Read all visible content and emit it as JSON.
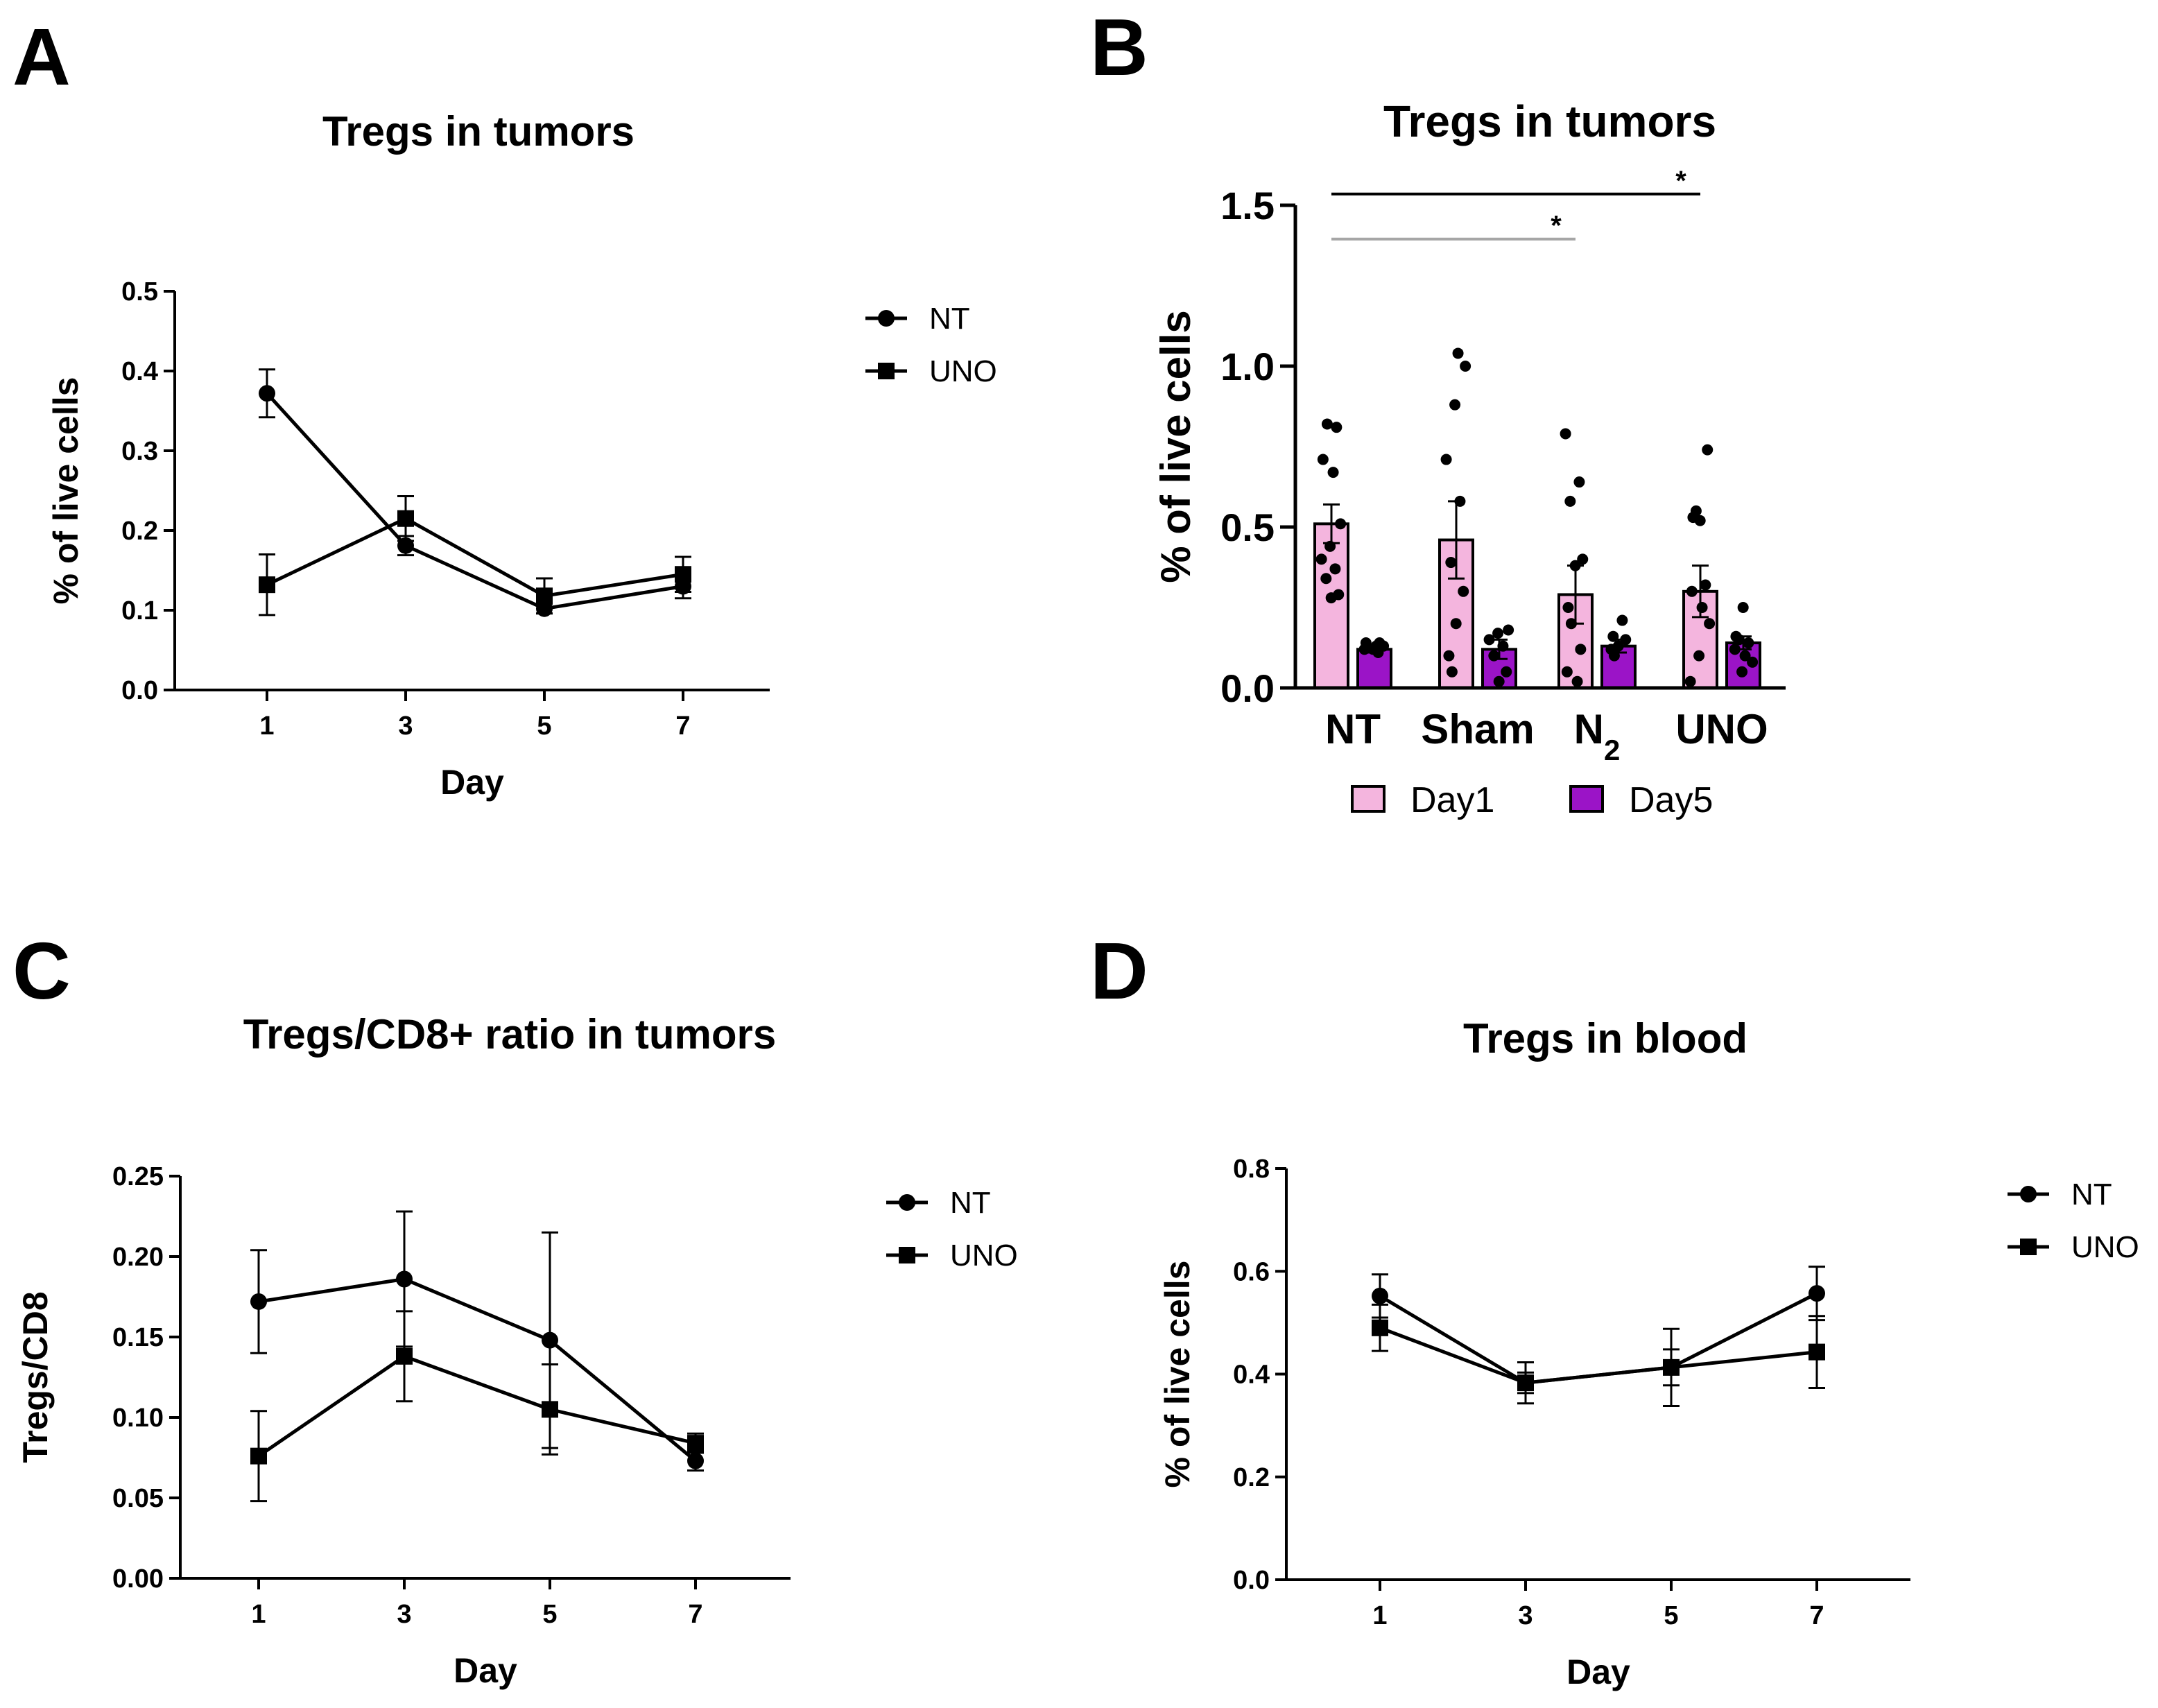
{
  "chart_data": [
    {
      "panel": "A",
      "type": "line",
      "title": "Tregs in tumors",
      "xlabel": "Day",
      "ylabel": "% of live cells",
      "x": [
        1,
        3,
        5,
        7
      ],
      "xticks": [
        "1",
        "3",
        "5",
        "7"
      ],
      "ylim": [
        0,
        0.5
      ],
      "yticks": [
        "0.0",
        "0.1",
        "0.2",
        "0.3",
        "0.4",
        "0.5"
      ],
      "series": [
        {
          "name": "NT",
          "marker": "circle",
          "values": [
            0.372,
            0.181,
            0.102,
            0.13
          ],
          "errors": [
            0.03,
            0.012,
            0.006,
            0.015
          ]
        },
        {
          "name": "UNO",
          "marker": "square",
          "values": [
            0.132,
            0.215,
            0.118,
            0.145
          ],
          "errors": [
            0.038,
            0.028,
            0.022,
            0.022
          ]
        }
      ]
    },
    {
      "panel": "B",
      "type": "bar",
      "title": "Tregs in tumors",
      "xlabel": "",
      "ylabel": "% of live cells",
      "categories": [
        "NT",
        "Sham",
        "N",
        "UNO"
      ],
      "category_subscripts": [
        "",
        "",
        "2",
        ""
      ],
      "ylim": [
        0,
        1.5
      ],
      "yticks": [
        "0.0",
        "0.5",
        "1.0",
        "1.5"
      ],
      "colors": {
        "Day1": "#f4b5de",
        "Day5": "#9b14c7"
      },
      "series": [
        {
          "name": "Day1",
          "values": [
            0.51,
            0.46,
            0.29,
            0.3
          ],
          "errors": [
            0.06,
            0.12,
            0.09,
            0.08
          ],
          "points": [
            [
              0.82,
              0.81,
              0.71,
              0.67,
              0.51,
              0.44,
              0.4,
              0.37,
              0.34,
              0.29,
              0.28
            ],
            [
              1.04,
              1.0,
              0.88,
              0.71,
              0.58,
              0.39,
              0.3,
              0.2,
              0.1,
              0.05
            ],
            [
              0.79,
              0.64,
              0.58,
              0.4,
              0.38,
              0.25,
              0.2,
              0.12,
              0.05,
              0.02
            ],
            [
              0.74,
              0.52,
              0.53,
              0.55,
              0.32,
              0.3,
              0.25,
              0.2,
              0.1,
              0.02
            ]
          ]
        },
        {
          "name": "Day5",
          "values": [
            0.12,
            0.12,
            0.13,
            0.14
          ],
          "errors": [
            0.01,
            0.03,
            0.02,
            0.02
          ],
          "points": [
            [
              0.14,
              0.14,
              0.13,
              0.13,
              0.12,
              0.12,
              0.11
            ],
            [
              0.18,
              0.17,
              0.15,
              0.13,
              0.1,
              0.05,
              0.02
            ],
            [
              0.21,
              0.16,
              0.15,
              0.13,
              0.12,
              0.1
            ],
            [
              0.25,
              0.16,
              0.15,
              0.14,
              0.12,
              0.1,
              0.08,
              0.05
            ]
          ]
        }
      ],
      "annotations": [
        {
          "label": "*",
          "from": "NT",
          "to": "UNO",
          "y": 1.535,
          "color": "#000000"
        },
        {
          "label": "*",
          "from": "NT",
          "to": "N",
          "y": 1.395,
          "color": "#a6a6a6"
        }
      ]
    },
    {
      "panel": "C",
      "type": "line",
      "title": "Tregs/CD8+ ratio in tumors",
      "xlabel": "Day",
      "ylabel": "Tregs/CD8",
      "x": [
        1,
        3,
        5,
        7
      ],
      "xticks": [
        "1",
        "3",
        "5",
        "7"
      ],
      "ylim": [
        0,
        0.25
      ],
      "yticks": [
        "0.00",
        "0.05",
        "0.10",
        "0.15",
        "0.20",
        "0.25"
      ],
      "series": [
        {
          "name": "NT",
          "marker": "circle",
          "values": [
            0.172,
            0.186,
            0.148,
            0.073
          ],
          "errors": [
            0.032,
            0.042,
            0.067,
            0.006
          ]
        },
        {
          "name": "UNO",
          "marker": "square",
          "values": [
            0.076,
            0.138,
            0.105,
            0.084
          ],
          "errors": [
            0.028,
            0.028,
            0.028,
            0.006
          ]
        }
      ]
    },
    {
      "panel": "D",
      "type": "line",
      "title": "Tregs in blood",
      "xlabel": "Day",
      "ylabel": "% of live cells",
      "x": [
        1,
        3,
        5,
        7
      ],
      "xticks": [
        "1",
        "3",
        "5",
        "7"
      ],
      "ylim": [
        0,
        0.8
      ],
      "yticks": [
        "0.0",
        "0.2",
        "0.4",
        "0.6",
        "0.8"
      ],
      "series": [
        {
          "name": "NT",
          "marker": "circle",
          "values": [
            0.552,
            0.383,
            0.413,
            0.557
          ],
          "errors": [
            0.042,
            0.04,
            0.075,
            0.052
          ]
        },
        {
          "name": "UNO",
          "marker": "square",
          "values": [
            0.49,
            0.383,
            0.413,
            0.443
          ],
          "errors": [
            0.045,
            0.02,
            0.035,
            0.07
          ]
        }
      ]
    }
  ]
}
